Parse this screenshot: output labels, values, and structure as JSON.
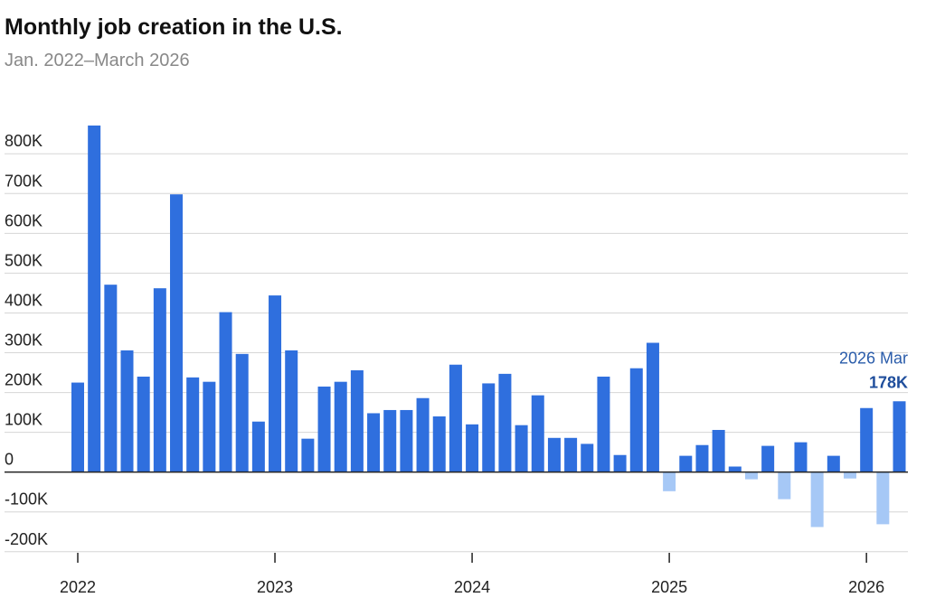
{
  "chart_data": {
    "type": "bar",
    "title": "Monthly job creation in the U.S.",
    "subtitle": "Jan. 2022–March 2026",
    "categories": [
      "2022",
      null,
      null,
      null,
      null,
      null,
      null,
      null,
      null,
      null,
      null,
      null,
      "2023",
      null,
      null,
      null,
      null,
      null,
      null,
      null,
      null,
      null,
      null,
      null,
      "2024",
      null,
      null,
      null,
      null,
      null,
      null,
      null,
      null,
      null,
      null,
      null,
      "2025",
      null,
      null,
      null,
      null,
      null,
      null,
      null,
      null,
      null,
      null,
      null,
      "2026",
      null,
      null
    ],
    "values": [
      225,
      871,
      471,
      306,
      240,
      462,
      698,
      238,
      227,
      402,
      297,
      127,
      444,
      306,
      84,
      215,
      227,
      256,
      148,
      156,
      156,
      186,
      140,
      270,
      120,
      223,
      247,
      118,
      193,
      86,
      86,
      71,
      240,
      43,
      261,
      325,
      -48,
      41,
      68,
      106,
      14,
      -18,
      66,
      -68,
      75,
      -138,
      41,
      -16,
      161,
      -131,
      178
    ],
    "value_labels": [
      null,
      null,
      null,
      null,
      null,
      null,
      null,
      null,
      null,
      null,
      null,
      null,
      null,
      null,
      null,
      null,
      null,
      null,
      null,
      null,
      null,
      null,
      null,
      null,
      null,
      null,
      null,
      null,
      null,
      null,
      null,
      null,
      null,
      null,
      null,
      null,
      null,
      null,
      null,
      null,
      null,
      null,
      null,
      null,
      null,
      null,
      null,
      null,
      null,
      null,
      "178K"
    ],
    "annotation": "2026 Mar",
    "color": "#2f6fde",
    "negative_color": "#a6c8f6",
    "ylim": [
      -230,
      880
    ],
    "yticks": [
      {
        "value": -200,
        "label": "-200K"
      },
      {
        "value": -100,
        "label": "-100K"
      },
      0,
      {
        "value": 100,
        "label": "100K"
      },
      {
        "value": 200,
        "label": "200K"
      },
      {
        "value": 300,
        "label": "300K"
      },
      {
        "value": 400,
        "label": "400K"
      },
      {
        "value": 500,
        "label": "500K"
      },
      {
        "value": 600,
        "label": "600K"
      },
      {
        "value": 700,
        "label": "700K"
      },
      {
        "value": 800,
        "label": "800K"
      }
    ],
    "grid": true
  }
}
